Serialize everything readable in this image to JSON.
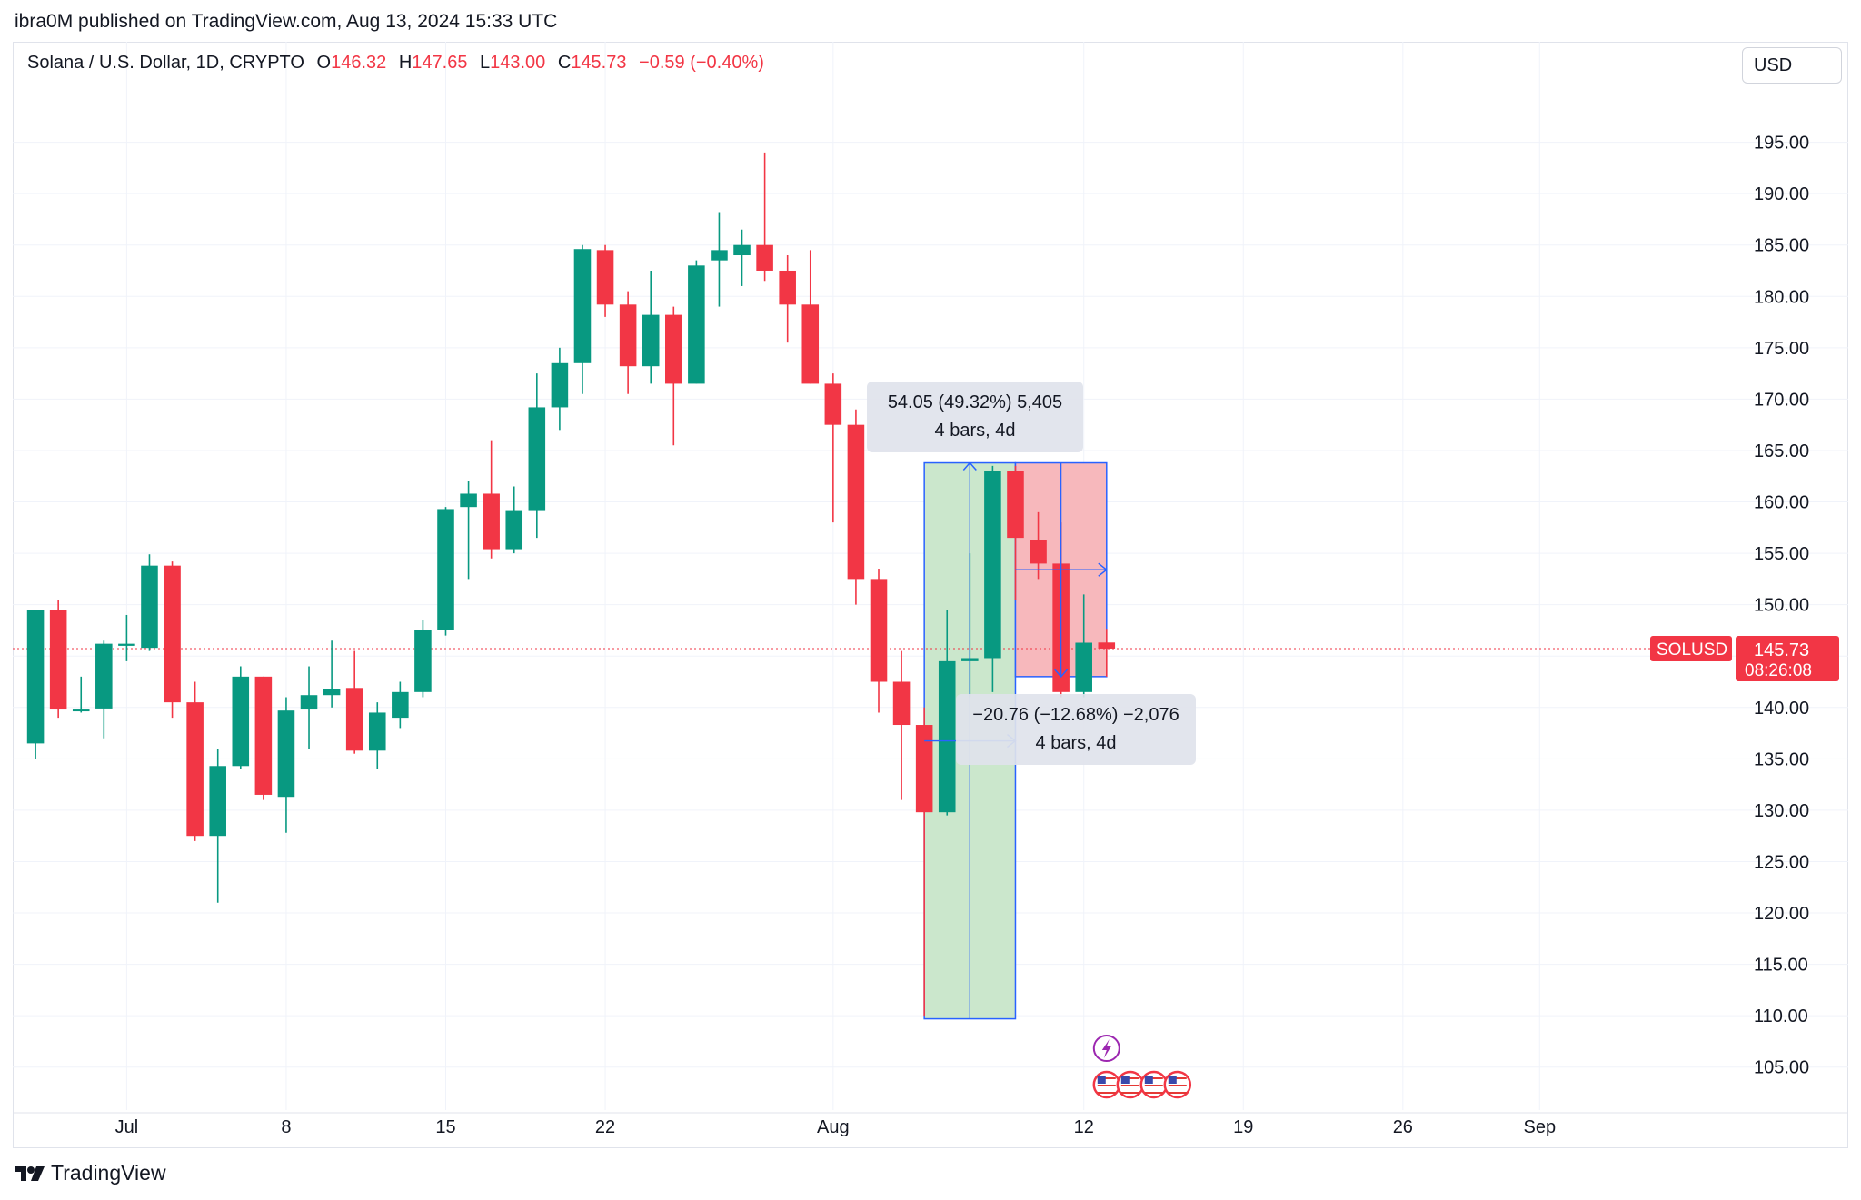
{
  "header": {
    "published": "ibra0M published on TradingView.com, Aug 13, 2024 15:33 UTC",
    "symbol": "Solana / U.S. Dollar, 1D, CRYPTO",
    "open_label": "O",
    "open": "146.32",
    "high_label": "H",
    "high": "147.65",
    "low_label": "L",
    "low": "143.00",
    "close_label": "C",
    "close": "145.73",
    "change": "−0.59 (−0.40%)"
  },
  "currency": "USD",
  "footer": {
    "brand": "TradingView"
  },
  "measure_up": {
    "line1": "54.05 (49.32%) 5,405",
    "line2": "4 bars, 4d"
  },
  "measure_down": {
    "line1": "−20.76 (−12.68%) −2,076",
    "line2": "4 bars, 4d"
  },
  "price_tag": {
    "symbol": "SOLUSD",
    "price": "145.73",
    "countdown": "08:26:08"
  },
  "colors": {
    "up": "#089981",
    "down": "#f23645",
    "grid": "#f0f3fa",
    "axis_text": "#131722"
  },
  "icons": {
    "event": "lightning-icon",
    "country": "us-flag-icon"
  },
  "chart_data": {
    "type": "candlestick",
    "y_ticks": [
      "195.00",
      "190.00",
      "185.00",
      "180.00",
      "175.00",
      "170.00",
      "165.00",
      "160.00",
      "155.00",
      "150.00",
      "145.00",
      "140.00",
      "135.00",
      "130.00",
      "125.00",
      "120.00",
      "115.00",
      "110.00",
      "105.00"
    ],
    "x_ticks": [
      {
        "label": "Jul",
        "date": "2024-07-01"
      },
      {
        "label": "8",
        "date": "2024-07-08"
      },
      {
        "label": "15",
        "date": "2024-07-15"
      },
      {
        "label": "22",
        "date": "2024-07-22"
      },
      {
        "label": "Aug",
        "date": "2024-08-01"
      },
      {
        "label": "12",
        "date": "2024-08-12"
      },
      {
        "label": "19",
        "date": "2024-08-19"
      },
      {
        "label": "26",
        "date": "2024-08-26"
      },
      {
        "label": "Sep",
        "date": "2024-09-01"
      }
    ],
    "ylim": [
      101,
      200
    ],
    "xlim": [
      "2024-06-26",
      "2024-09-10"
    ],
    "last_price": 145.73,
    "candles": [
      {
        "date": "2024-06-27",
        "o": 136.5,
        "h": 149.5,
        "l": 135.0,
        "c": 149.5
      },
      {
        "date": "2024-06-28",
        "o": 149.5,
        "h": 150.5,
        "l": 139.0,
        "c": 139.8
      },
      {
        "date": "2024-06-29",
        "o": 139.8,
        "h": 143.0,
        "l": 139.5,
        "c": 139.8
      },
      {
        "date": "2024-06-30",
        "o": 139.9,
        "h": 146.5,
        "l": 137.0,
        "c": 146.2
      },
      {
        "date": "2024-07-01",
        "o": 146.0,
        "h": 149.0,
        "l": 144.5,
        "c": 146.2
      },
      {
        "date": "2024-07-02",
        "o": 145.8,
        "h": 154.9,
        "l": 145.5,
        "c": 153.8
      },
      {
        "date": "2024-07-03",
        "o": 153.8,
        "h": 154.2,
        "l": 139.0,
        "c": 140.5
      },
      {
        "date": "2024-07-04",
        "o": 140.5,
        "h": 142.5,
        "l": 127.0,
        "c": 127.5
      },
      {
        "date": "2024-07-05",
        "o": 127.5,
        "h": 136.0,
        "l": 121.0,
        "c": 134.3
      },
      {
        "date": "2024-07-06",
        "o": 134.3,
        "h": 144.0,
        "l": 134.0,
        "c": 143.0
      },
      {
        "date": "2024-07-07",
        "o": 143.0,
        "h": 143.0,
        "l": 131.0,
        "c": 131.5
      },
      {
        "date": "2024-07-08",
        "o": 131.3,
        "h": 141.0,
        "l": 127.8,
        "c": 139.7
      },
      {
        "date": "2024-07-09",
        "o": 139.8,
        "h": 144.0,
        "l": 136.0,
        "c": 141.2
      },
      {
        "date": "2024-07-10",
        "o": 141.2,
        "h": 146.5,
        "l": 140.0,
        "c": 141.8
      },
      {
        "date": "2024-07-11",
        "o": 141.9,
        "h": 145.5,
        "l": 135.5,
        "c": 135.8
      },
      {
        "date": "2024-07-12",
        "o": 135.8,
        "h": 140.5,
        "l": 134.0,
        "c": 139.5
      },
      {
        "date": "2024-07-13",
        "o": 139.0,
        "h": 142.5,
        "l": 138.0,
        "c": 141.5
      },
      {
        "date": "2024-07-14",
        "o": 141.5,
        "h": 148.5,
        "l": 141.0,
        "c": 147.5
      },
      {
        "date": "2024-07-15",
        "o": 147.5,
        "h": 159.5,
        "l": 147.0,
        "c": 159.3
      },
      {
        "date": "2024-07-16",
        "o": 159.5,
        "h": 162.0,
        "l": 152.5,
        "c": 160.8
      },
      {
        "date": "2024-07-17",
        "o": 160.8,
        "h": 166.0,
        "l": 154.5,
        "c": 155.4
      },
      {
        "date": "2024-07-18",
        "o": 155.4,
        "h": 161.5,
        "l": 155.0,
        "c": 159.2
      },
      {
        "date": "2024-07-19",
        "o": 159.2,
        "h": 172.5,
        "l": 156.5,
        "c": 169.2
      },
      {
        "date": "2024-07-20",
        "o": 169.2,
        "h": 175.0,
        "l": 167.0,
        "c": 173.5
      },
      {
        "date": "2024-07-21",
        "o": 173.5,
        "h": 185.0,
        "l": 170.5,
        "c": 184.6
      },
      {
        "date": "2024-07-22",
        "o": 184.5,
        "h": 185.0,
        "l": 178.0,
        "c": 179.2
      },
      {
        "date": "2024-07-23",
        "o": 179.2,
        "h": 180.5,
        "l": 170.5,
        "c": 173.2
      },
      {
        "date": "2024-07-24",
        "o": 173.2,
        "h": 182.5,
        "l": 171.5,
        "c": 178.2
      },
      {
        "date": "2024-07-25",
        "o": 178.2,
        "h": 179.0,
        "l": 165.5,
        "c": 171.5
      },
      {
        "date": "2024-07-26",
        "o": 171.5,
        "h": 183.5,
        "l": 171.5,
        "c": 183.0
      },
      {
        "date": "2024-07-27",
        "o": 183.5,
        "h": 188.2,
        "l": 179.0,
        "c": 184.5
      },
      {
        "date": "2024-07-28",
        "o": 184.0,
        "h": 186.5,
        "l": 181.0,
        "c": 185.0
      },
      {
        "date": "2024-07-29",
        "o": 185.0,
        "h": 194.0,
        "l": 181.5,
        "c": 182.5
      },
      {
        "date": "2024-07-30",
        "o": 182.5,
        "h": 184.0,
        "l": 175.5,
        "c": 179.2
      },
      {
        "date": "2024-07-31",
        "o": 179.2,
        "h": 184.5,
        "l": 171.5,
        "c": 171.5
      },
      {
        "date": "2024-08-01",
        "o": 171.5,
        "h": 172.5,
        "l": 158.0,
        "c": 167.5
      },
      {
        "date": "2024-08-02",
        "o": 167.5,
        "h": 169.0,
        "l": 150.0,
        "c": 152.5
      },
      {
        "date": "2024-08-03",
        "o": 152.5,
        "h": 153.5,
        "l": 139.5,
        "c": 142.5
      },
      {
        "date": "2024-08-04",
        "o": 142.5,
        "h": 145.5,
        "l": 131.0,
        "c": 138.3
      },
      {
        "date": "2024-08-05",
        "o": 138.3,
        "h": 140.0,
        "l": 110.0,
        "c": 129.8
      },
      {
        "date": "2024-08-06",
        "o": 129.8,
        "h": 149.5,
        "l": 129.5,
        "c": 144.5
      },
      {
        "date": "2024-08-07",
        "o": 144.5,
        "h": 155.0,
        "l": 141.0,
        "c": 144.8
      },
      {
        "date": "2024-08-08",
        "o": 144.8,
        "h": 163.5,
        "l": 141.5,
        "c": 163.0
      },
      {
        "date": "2024-08-09",
        "o": 163.0,
        "h": 163.5,
        "l": 150.5,
        "c": 156.5
      },
      {
        "date": "2024-08-10",
        "o": 156.3,
        "h": 159.0,
        "l": 152.5,
        "c": 154.0
      },
      {
        "date": "2024-08-11",
        "o": 154.0,
        "h": 158.0,
        "l": 141.0,
        "c": 141.5
      },
      {
        "date": "2024-08-12",
        "o": 141.5,
        "h": 151.0,
        "l": 141.0,
        "c": 146.3
      },
      {
        "date": "2024-08-13",
        "o": 146.32,
        "h": 147.65,
        "l": 143.0,
        "c": 145.73
      }
    ],
    "ranges": [
      {
        "from": "2024-08-05",
        "to": "2024-08-09",
        "low": 109.7,
        "high": 163.8,
        "fill": "#c8e6c9",
        "up": true
      },
      {
        "from": "2024-08-09",
        "to": "2024-08-13",
        "low": 143.0,
        "high": 163.8,
        "fill": "#f7b4b8",
        "up": false
      }
    ]
  }
}
